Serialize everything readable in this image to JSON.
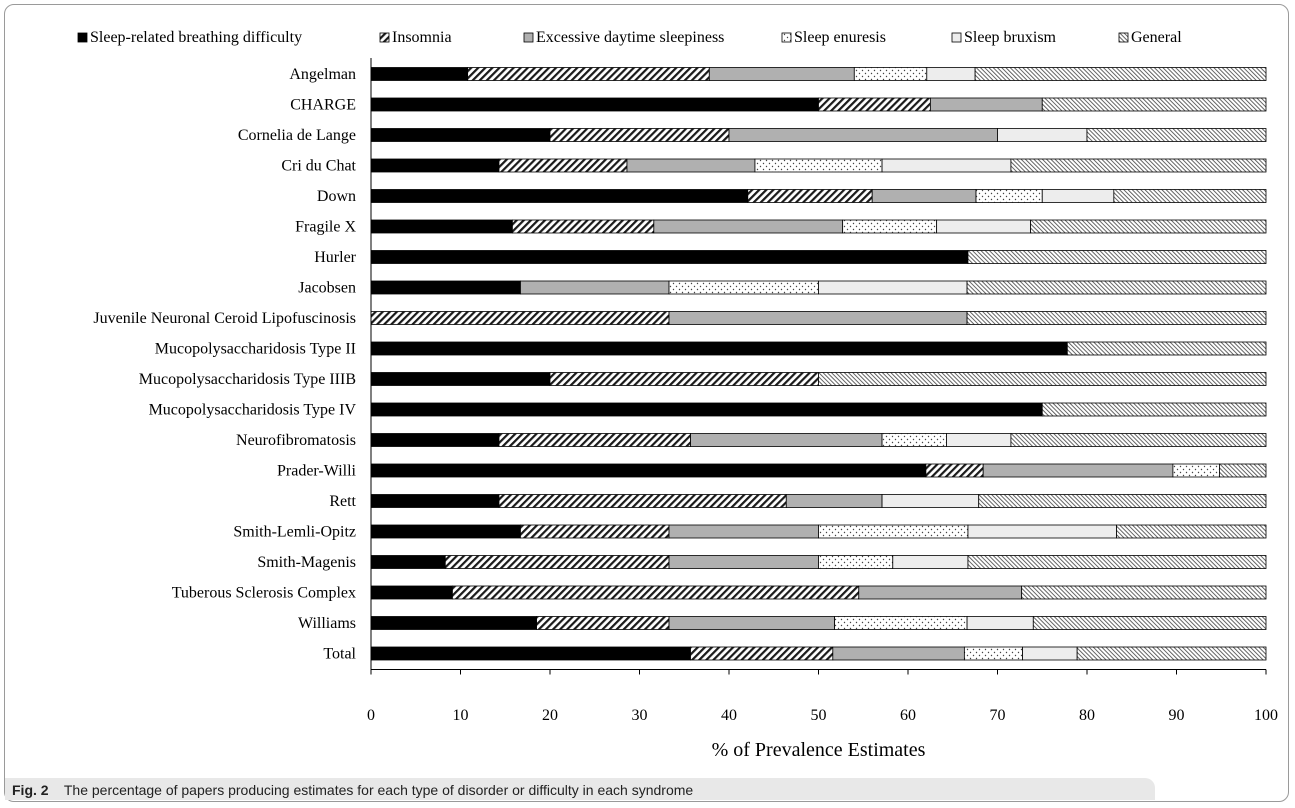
{
  "chart_data": {
    "type": "bar",
    "orientation": "horizontal",
    "stacked": true,
    "categories": [
      "Angelman",
      "CHARGE",
      "Cornelia de Lange",
      "Cri du Chat",
      "Down",
      "Fragile X",
      "Hurler",
      "Jacobsen",
      "Juvenile Neuronal Ceroid Lipofuscinosis",
      "Mucopolysaccharidosis Type II",
      "Mucopolysaccharidosis Type IIIB",
      "Mucopolysaccharidosis Type IV",
      "Neurofibromatosis",
      "Prader-Willi",
      "Rett",
      "Smith-Lemli-Opitz",
      "Smith-Magenis",
      "Tuberous Sclerosis Complex",
      "Williams",
      "Total"
    ],
    "series": [
      {
        "name": "Sleep-related breathing difficulty",
        "pattern": "solid-black",
        "values": [
          10.8,
          50,
          20,
          14.3,
          42.1,
          15.8,
          66.7,
          16.7,
          0,
          77.8,
          20,
          75,
          14.3,
          62.0,
          14.3,
          16.7,
          8.3,
          9.1,
          18.5,
          35.7
        ]
      },
      {
        "name": "Insomnia",
        "pattern": "diagonal-hatch",
        "values": [
          27.0,
          12.5,
          20,
          14.3,
          13.9,
          15.8,
          0,
          0,
          33.3,
          0,
          30,
          0,
          21.4,
          6.4,
          32.1,
          16.6,
          25.0,
          45.4,
          14.8,
          15.9
        ]
      },
      {
        "name": "Excessive daytime sleepiness",
        "pattern": "gray",
        "values": [
          16.2,
          12.5,
          30,
          14.3,
          11.6,
          21.1,
          0,
          16.6,
          33.3,
          0,
          0,
          0,
          21.4,
          21.2,
          10.7,
          16.7,
          16.7,
          18.2,
          18.5,
          14.7
        ]
      },
      {
        "name": "Sleep enuresis",
        "pattern": "dotted",
        "values": [
          8.1,
          0,
          0,
          14.2,
          7.4,
          10.5,
          0,
          16.7,
          0,
          0,
          0,
          0,
          7.2,
          5.2,
          0,
          16.7,
          8.3,
          0,
          14.8,
          6.5
        ]
      },
      {
        "name": "Sleep bruxism",
        "pattern": "light",
        "values": [
          5.4,
          0,
          10,
          14.4,
          8.0,
          10.5,
          0,
          16.6,
          0,
          0,
          0,
          0,
          7.2,
          0,
          10.8,
          16.6,
          8.4,
          0,
          7.4,
          6.1
        ]
      },
      {
        "name": "General",
        "pattern": "fine-hatch",
        "values": [
          32.5,
          25,
          20,
          28.5,
          17.0,
          26.3,
          33.3,
          33.4,
          33.4,
          22.2,
          50,
          25,
          28.5,
          5.2,
          32.1,
          16.7,
          33.3,
          27.3,
          26.0,
          21.1
        ]
      }
    ],
    "xlabel": "% of Prevalence Estimates",
    "ylabel": "",
    "xlim": [
      0,
      100
    ],
    "xticks": [
      "0",
      "10",
      "20",
      "30",
      "40",
      "50",
      "60",
      "70",
      "80",
      "90",
      "100"
    ],
    "grid": false,
    "legend_position": "top"
  },
  "caption": {
    "label": "Fig. 2",
    "text": "The percentage of papers producing estimates for each type of disorder or difficulty in each syndrome"
  }
}
